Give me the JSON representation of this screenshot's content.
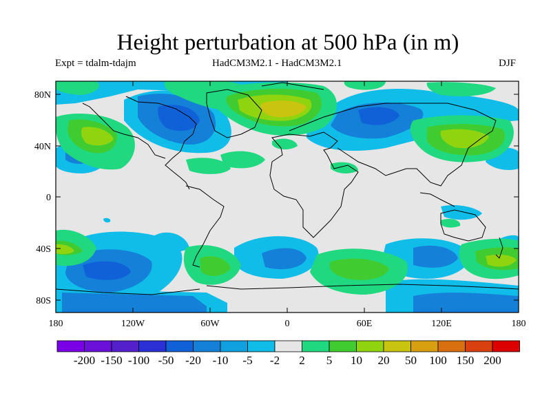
{
  "title": "Height perturbation at 500 hPa (in m)",
  "experiment_label": "Expt = tdalm-tdajm",
  "models_label": "HadCM3M2.1 - HadCM3M2.1",
  "season_label": "DJF",
  "map": {
    "lat_ticks": [
      "80N",
      "40N",
      "0",
      "40S",
      "80S"
    ],
    "lon_ticks": [
      "180",
      "120W",
      "60W",
      "0",
      "60E",
      "120E",
      "180"
    ],
    "land_color": "#000000",
    "background_color": "#e6e6e6"
  },
  "colorbar": {
    "labels": [
      "-200",
      "-150",
      "-100",
      "-50",
      "-20",
      "-10",
      "-5",
      "-2",
      "2",
      "5",
      "10",
      "20",
      "50",
      "100",
      "150",
      "200"
    ],
    "colors": [
      "#7a00e6",
      "#6a10d8",
      "#5420cc",
      "#2b2fd6",
      "#1060d8",
      "#1480d8",
      "#10a0e0",
      "#10bce8",
      "#e6e6e6",
      "#20d880",
      "#40cc30",
      "#90d410",
      "#c8c410",
      "#d8a010",
      "#d87010",
      "#d84010",
      "#dc0000"
    ]
  }
}
